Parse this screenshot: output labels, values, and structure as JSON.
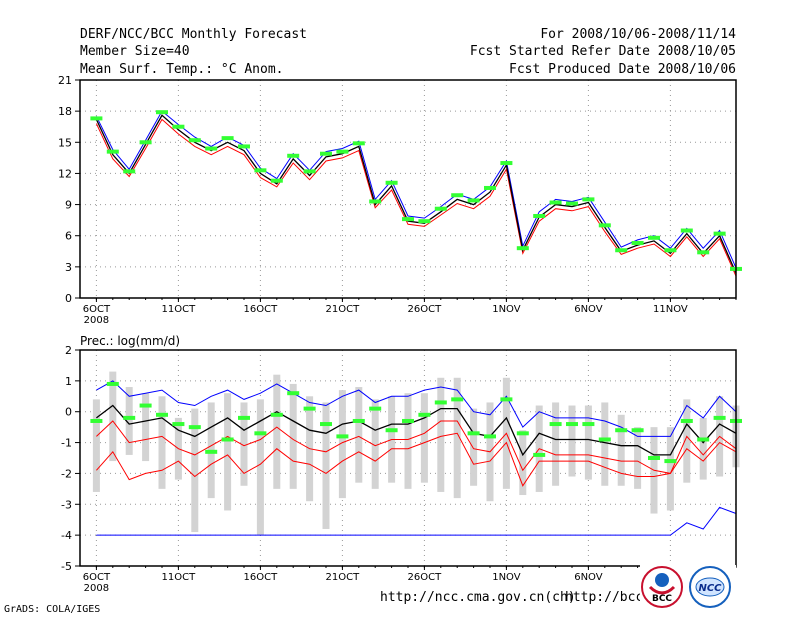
{
  "header": {
    "title": "DERF/NCC/BCC Monthly Forecast",
    "member_size": "Member Size=40",
    "variable": "Mean Surf. Temp.: °C Anom.",
    "period": "For 2008/10/06-2008/11/14",
    "started": "Fcst Started Refer Date 2008/10/05",
    "produced": "Fcst Produced Date 2008/10/06"
  },
  "footer": {
    "url_left": "http://ncc.cma.gov.cn(ch)",
    "url_right": "http://bcc.c",
    "grads": "GrADS: COLA/IGES",
    "logo_bcc": "BCC",
    "logo_ncc": "NCC"
  },
  "colors": {
    "mean": "#000000",
    "upper": "#0000ff",
    "lower": "#ff0000",
    "obs": "#33ff33",
    "box": "#d3d3d3"
  },
  "chart_data": [
    {
      "type": "line",
      "title": "Mean Surf. Temp.: °C Anom.",
      "x": [
        "6OCT",
        "7OCT",
        "8OCT",
        "9OCT",
        "10OCT",
        "11OCT",
        "12OCT",
        "13OCT",
        "14OCT",
        "15OCT",
        "16OCT",
        "17OCT",
        "18OCT",
        "19OCT",
        "20OCT",
        "21OCT",
        "22OCT",
        "23OCT",
        "24OCT",
        "25OCT",
        "26OCT",
        "27OCT",
        "28OCT",
        "29OCT",
        "30OCT",
        "31OCT",
        "1NOV",
        "2NOV",
        "3NOV",
        "4NOV",
        "5NOV",
        "6NOV",
        "7NOV",
        "8NOV",
        "9NOV",
        "10NOV",
        "11NOV",
        "12NOV",
        "13NOV",
        "14NOV"
      ],
      "xtick_labels": [
        "6OCT\n2008",
        "11OCT",
        "16OCT",
        "21OCT",
        "26OCT",
        "1NOV",
        "6NOV",
        "11NOV"
      ],
      "ylim": [
        0,
        21
      ],
      "yticks": [
        0,
        3,
        6,
        9,
        12,
        15,
        18,
        21
      ],
      "series": [
        {
          "name": "mean",
          "values": [
            17.2,
            13.8,
            12.0,
            14.8,
            17.6,
            16.2,
            15.0,
            14.2,
            15.0,
            14.2,
            12.0,
            11.0,
            13.4,
            11.8,
            13.6,
            13.9,
            14.6,
            9.0,
            10.8,
            7.4,
            7.2,
            8.3,
            9.5,
            9.0,
            10.2,
            12.8,
            4.6,
            7.8,
            9.0,
            8.8,
            9.2,
            6.8,
            4.5,
            5.1,
            5.5,
            4.3,
            6.2,
            4.3,
            6.0,
            2.4
          ]
        },
        {
          "name": "upper",
          "values": [
            17.5,
            14.3,
            12.4,
            15.2,
            18.0,
            16.7,
            15.5,
            14.6,
            15.5,
            14.7,
            12.5,
            11.5,
            13.9,
            12.3,
            14.1,
            14.4,
            15.1,
            9.5,
            11.3,
            7.9,
            7.7,
            8.8,
            10.0,
            9.5,
            10.7,
            13.2,
            5.0,
            8.3,
            9.5,
            9.3,
            9.7,
            7.3,
            4.9,
            5.6,
            6.0,
            4.8,
            6.7,
            4.8,
            6.5,
            2.9
          ]
        },
        {
          "name": "lower",
          "values": [
            16.8,
            13.4,
            11.7,
            14.4,
            17.2,
            15.8,
            14.6,
            13.8,
            14.6,
            13.8,
            11.6,
            10.7,
            13.0,
            11.4,
            13.2,
            13.5,
            14.2,
            8.7,
            10.4,
            7.1,
            6.9,
            8.0,
            9.1,
            8.6,
            9.8,
            12.4,
            4.3,
            7.4,
            8.6,
            8.4,
            8.8,
            6.4,
            4.2,
            4.8,
            5.2,
            4.0,
            5.9,
            4.0,
            5.7,
            2.1
          ]
        },
        {
          "name": "observed",
          "values": [
            17.3,
            14.1,
            12.2,
            15.0,
            17.9,
            16.5,
            15.2,
            14.4,
            15.4,
            14.6,
            12.3,
            11.3,
            13.7,
            12.2,
            13.9,
            14.1,
            14.9,
            9.3,
            11.1,
            7.6,
            7.4,
            8.6,
            9.9,
            9.4,
            10.6,
            13.0,
            4.8,
            7.9,
            9.2,
            9.1,
            9.5,
            7.0,
            4.6,
            5.3,
            5.8,
            4.6,
            6.5,
            4.4,
            6.2,
            2.8
          ]
        }
      ]
    },
    {
      "type": "line",
      "title": "Prec.: log(mm/d)",
      "x": [
        "6OCT",
        "7OCT",
        "8OCT",
        "9OCT",
        "10OCT",
        "11OCT",
        "12OCT",
        "13OCT",
        "14OCT",
        "15OCT",
        "16OCT",
        "17OCT",
        "18OCT",
        "19OCT",
        "20OCT",
        "21OCT",
        "22OCT",
        "23OCT",
        "24OCT",
        "25OCT",
        "26OCT",
        "27OCT",
        "28OCT",
        "29OCT",
        "30OCT",
        "31OCT",
        "1NOV",
        "2NOV",
        "3NOV",
        "4NOV",
        "5NOV",
        "6NOV",
        "7NOV",
        "8NOV",
        "9NOV",
        "10NOV",
        "11NOV",
        "12NOV",
        "13NOV",
        "14NOV"
      ],
      "xtick_labels": [
        "6OCT\n2008",
        "11OCT",
        "16OCT",
        "21OCT",
        "26OCT",
        "1NOV",
        "6NOV",
        "11NOV"
      ],
      "ylim": [
        -5,
        2
      ],
      "yticks": [
        -5,
        -4,
        -3,
        -2,
        -1,
        0,
        1,
        2
      ],
      "series": [
        {
          "name": "mean",
          "values": [
            -0.2,
            0.2,
            -0.4,
            -0.3,
            -0.2,
            -0.6,
            -0.8,
            -0.5,
            -0.2,
            -0.6,
            -0.3,
            0.0,
            -0.3,
            -0.6,
            -0.7,
            -0.4,
            -0.3,
            -0.6,
            -0.4,
            -0.4,
            -0.2,
            0.1,
            0.1,
            -0.7,
            -0.8,
            -0.2,
            -1.4,
            -0.7,
            -0.9,
            -0.9,
            -0.9,
            -1.0,
            -1.1,
            -1.1,
            -1.4,
            -1.4,
            -0.4,
            -1.0,
            -0.4,
            -0.7
          ]
        },
        {
          "name": "upper",
          "values": [
            0.7,
            1.0,
            0.5,
            0.6,
            0.7,
            0.3,
            0.2,
            0.5,
            0.7,
            0.4,
            0.6,
            0.9,
            0.6,
            0.3,
            0.2,
            0.5,
            0.7,
            0.3,
            0.5,
            0.5,
            0.7,
            0.8,
            0.7,
            0.0,
            -0.1,
            0.5,
            -0.5,
            0.0,
            -0.2,
            -0.2,
            -0.2,
            -0.3,
            -0.5,
            -0.8,
            -0.8,
            -0.8,
            0.2,
            -0.2,
            0.5,
            0.0
          ]
        },
        {
          "name": "lower_upper",
          "values": [
            -0.8,
            -0.3,
            -1.0,
            -0.9,
            -0.8,
            -1.2,
            -1.4,
            -1.1,
            -0.8,
            -1.1,
            -0.9,
            -0.5,
            -0.9,
            -1.2,
            -1.3,
            -1.0,
            -0.8,
            -1.1,
            -0.9,
            -0.9,
            -0.7,
            -0.3,
            -0.3,
            -1.2,
            -1.3,
            -0.7,
            -1.9,
            -1.2,
            -1.4,
            -1.4,
            -1.4,
            -1.5,
            -1.6,
            -1.6,
            -1.9,
            -2.0,
            -0.8,
            -1.4,
            -0.8,
            -1.2
          ]
        },
        {
          "name": "lower_lower",
          "values": [
            -1.9,
            -1.3,
            -2.2,
            -2.0,
            -1.9,
            -1.6,
            -2.1,
            -1.7,
            -1.4,
            -2.0,
            -1.7,
            -1.2,
            -1.6,
            -1.7,
            -2.0,
            -1.6,
            -1.3,
            -1.6,
            -1.2,
            -1.2,
            -1.0,
            -0.8,
            -0.7,
            -1.7,
            -1.6,
            -1.0,
            -2.4,
            -1.6,
            -1.6,
            -1.6,
            -1.6,
            -1.8,
            -2.0,
            -2.1,
            -2.1,
            -2.0,
            -1.2,
            -1.6,
            -1.0,
            -1.3
          ]
        },
        {
          "name": "minimum",
          "values": [
            -4.0,
            -4.0,
            -4.0,
            -4.0,
            -4.0,
            -4.0,
            -4.0,
            -4.0,
            -4.0,
            -4.0,
            -4.0,
            -4.0,
            -4.0,
            -4.0,
            -4.0,
            -4.0,
            -4.0,
            -4.0,
            -4.0,
            -4.0,
            -4.0,
            -4.0,
            -4.0,
            -4.0,
            -4.0,
            -4.0,
            -4.0,
            -4.0,
            -4.0,
            -4.0,
            -4.0,
            -4.0,
            -4.0,
            -4.0,
            -4.0,
            -4.0,
            -3.6,
            -3.8,
            -3.1,
            -3.3
          ]
        },
        {
          "name": "observed",
          "values": [
            -0.3,
            0.9,
            -0.2,
            0.2,
            -0.1,
            -0.4,
            -0.5,
            -1.3,
            -0.9,
            -0.2,
            -0.7,
            -0.1,
            0.6,
            0.1,
            -0.4,
            -0.8,
            -0.3,
            0.1,
            -0.6,
            -0.3,
            -0.1,
            0.3,
            0.4,
            -0.7,
            -0.8,
            0.4,
            -0.7,
            -1.4,
            -0.4,
            -0.4,
            -0.4,
            -0.9,
            -0.6,
            -0.6,
            -1.5,
            -1.6,
            -0.3,
            -0.9,
            -0.2,
            -0.3
          ]
        },
        {
          "name": "box_top",
          "values": [
            0.4,
            1.3,
            0.8,
            0.6,
            0.5,
            -0.2,
            0.1,
            0.3,
            0.6,
            0.3,
            0.4,
            1.2,
            0.9,
            0.5,
            0.3,
            0.7,
            0.8,
            0.4,
            0.5,
            0.6,
            0.6,
            1.1,
            1.1,
            0.1,
            0.3,
            1.1,
            -0.6,
            0.2,
            0.3,
            0.2,
            0.2,
            0.3,
            -0.1,
            -0.5,
            -0.5,
            -0.5,
            0.4,
            -0.2,
            0.5,
            0.2
          ]
        },
        {
          "name": "box_bottom",
          "values": [
            -2.6,
            -1.6,
            -1.4,
            -1.6,
            -2.5,
            -2.2,
            -3.9,
            -2.8,
            -3.2,
            -2.4,
            -4.0,
            -2.5,
            -2.5,
            -2.9,
            -3.8,
            -2.8,
            -2.3,
            -2.5,
            -2.3,
            -2.5,
            -2.3,
            -2.6,
            -2.8,
            -2.4,
            -2.9,
            -2.5,
            -2.7,
            -2.6,
            -2.4,
            -2.1,
            -2.2,
            -2.4,
            -2.4,
            -2.5,
            -3.3,
            -3.2,
            -2.3,
            -2.2,
            -2.1,
            -1.8
          ]
        }
      ]
    }
  ]
}
